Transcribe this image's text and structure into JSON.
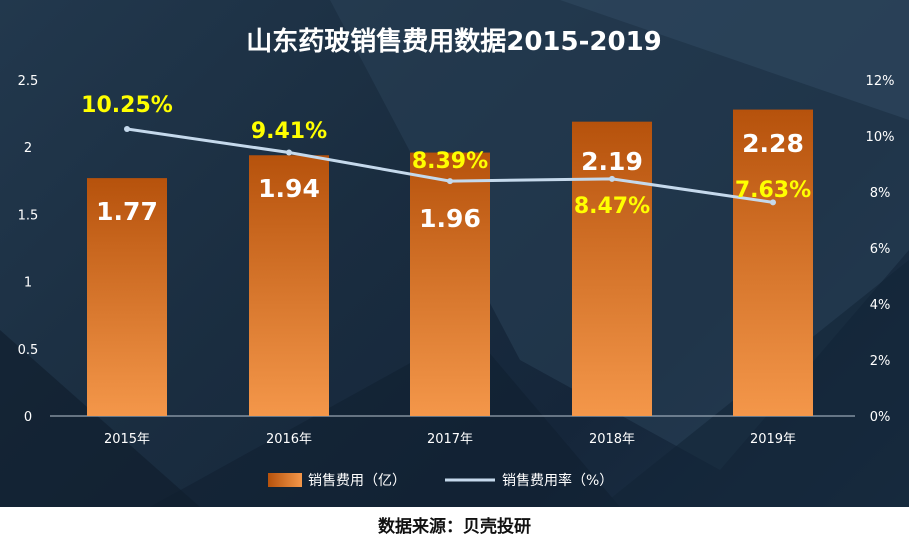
{
  "chart_data": {
    "type": "bar",
    "title": "山东药玻销售费用数据2015-2019",
    "categories": [
      "2015年",
      "2016年",
      "2017年",
      "2018年",
      "2019年"
    ],
    "series": [
      {
        "name": "销售费用（亿）",
        "type": "bar",
        "axis": "left",
        "values": [
          1.77,
          1.94,
          1.96,
          2.19,
          2.28
        ],
        "labels": [
          "1.77",
          "1.94",
          "1.96",
          "2.19",
          "2.28"
        ]
      },
      {
        "name": "销售费用率（%）",
        "type": "line",
        "axis": "right",
        "values": [
          10.25,
          9.41,
          8.39,
          8.47,
          7.63
        ],
        "labels": [
          "10.25%",
          "9.41%",
          "8.39%",
          "8.47%",
          "7.63%"
        ]
      }
    ],
    "left_axis": {
      "ylim": [
        0,
        2.5
      ],
      "ticks": [
        "0",
        "0.5",
        "1",
        "1.5",
        "2",
        "2.5"
      ]
    },
    "right_axis": {
      "ylim": [
        0,
        12
      ],
      "ticks": [
        "0%",
        "2%",
        "4%",
        "6%",
        "8%",
        "10%",
        "12%"
      ]
    },
    "legend_position": "bottom",
    "grid": false
  },
  "colors": {
    "bar_top": "#b6520c",
    "bar_bottom": "#f4974a",
    "line": "#c5d9ec",
    "rate_label": "#ffff00",
    "bar_label": "#ffffff",
    "axis_text": "#ffffff"
  },
  "source": "数据来源：贝壳投研"
}
